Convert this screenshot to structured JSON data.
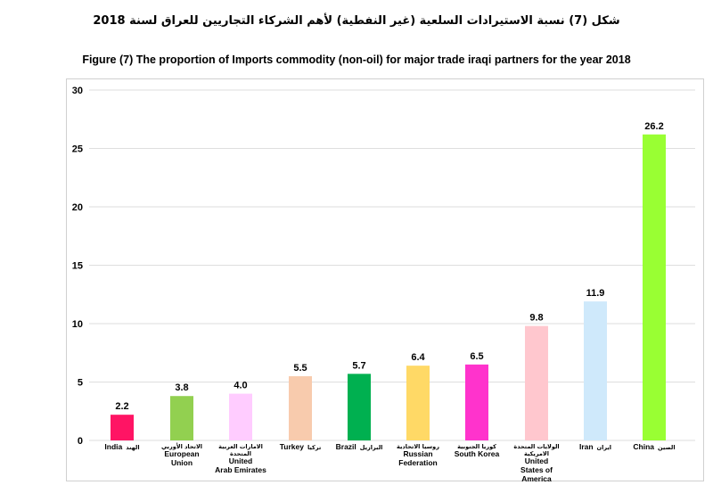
{
  "title_ar": "شكل (7) نسبة  الاستيرادات السلعية (غير النفطية) لأهم الشركاء التجاريين للعراق لسنة  2018",
  "title_en": "Figure (7) The proportion of Imports commodity (non-oil)  for major trade iraqi partners for  the year 2018",
  "chart_data": {
    "type": "bar",
    "title": "Figure (7) The proportion of Imports commodity (non-oil)  for major trade iraqi partners for  the year 2018",
    "xlabel": "",
    "ylabel": "",
    "ylim": [
      0,
      30
    ],
    "yticks": [
      0,
      5,
      10,
      15,
      20,
      25,
      30
    ],
    "grid": true,
    "categories": [
      {
        "en": [
          "India"
        ],
        "ar": [
          "الهند"
        ],
        "layout": "inline"
      },
      {
        "en": [
          "European",
          "Union"
        ],
        "ar": [
          "الاتحاد الأوربي"
        ],
        "layout": "stacked"
      },
      {
        "en": [
          "United",
          "Arab Emirates"
        ],
        "ar": [
          "الامارات العربية",
          "المتحدة"
        ],
        "layout": "stacked"
      },
      {
        "en": [
          "Turkey"
        ],
        "ar": [
          "تركيا"
        ],
        "layout": "inline"
      },
      {
        "en": [
          "Brazil"
        ],
        "ar": [
          "البرازيل"
        ],
        "layout": "inline"
      },
      {
        "en": [
          "Russian",
          "Federation"
        ],
        "ar": [
          "روسيا الاتحادية"
        ],
        "layout": "stacked"
      },
      {
        "en": [
          "South Korea"
        ],
        "ar": [
          "كوريا الجنوبية"
        ],
        "layout": "stacked"
      },
      {
        "en": [
          "United",
          "States of",
          "America"
        ],
        "ar": [
          "الولايات المتحدة",
          "الامريكية"
        ],
        "layout": "stacked"
      },
      {
        "en": [
          "Iran"
        ],
        "ar": [
          "ايران"
        ],
        "layout": "inline"
      },
      {
        "en": [
          "China"
        ],
        "ar": [
          "الصين"
        ],
        "layout": "inline"
      }
    ],
    "values": [
      2.2,
      3.8,
      4.0,
      5.5,
      5.7,
      6.4,
      6.5,
      9.8,
      11.9,
      26.2
    ],
    "value_labels": [
      "2.2",
      "3.8",
      "4.0",
      "5.5",
      "5.7",
      "6.4",
      "6.5",
      "9.8",
      "11.9",
      "26.2"
    ],
    "colors": [
      "#ff1464",
      "#92d050",
      "#ffccff",
      "#f8cbad",
      "#00b050",
      "#ffd966",
      "#ff33cc",
      "#ffc7ce",
      "#cfe9fb",
      "#99ff33"
    ]
  }
}
